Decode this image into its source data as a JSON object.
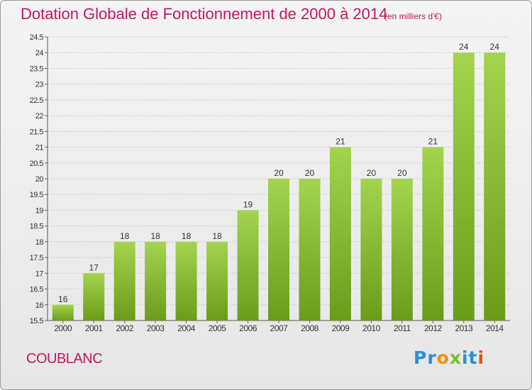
{
  "header": {
    "title": "Dotation Globale de Fonctionnement de 2000 à 2014",
    "subtitle": "(en milliers d'€)"
  },
  "footer": {
    "commune": "COUBLANC",
    "logo_text": "Proxiti"
  },
  "colors": {
    "title": "#c2185b",
    "bar_light": "#a4d44e",
    "bar_dark": "#6a9c1a",
    "logo": [
      "#2d8fd5",
      "#f39200",
      "#7bbf2a",
      "#2d8fd5",
      "#e94e1b"
    ]
  },
  "chart_data": {
    "type": "bar",
    "title": "Dotation Globale de Fonctionnement de 2000 à 2014",
    "subtitle": "(en milliers d'€)",
    "categories": [
      "2000",
      "2001",
      "2002",
      "2003",
      "2004",
      "2005",
      "2006",
      "2007",
      "2008",
      "2009",
      "2010",
      "2011",
      "2012",
      "2013",
      "2014"
    ],
    "values": [
      16,
      17,
      18,
      18,
      18,
      18,
      19,
      20,
      20,
      21,
      20,
      20,
      21,
      24,
      24
    ],
    "data_labels": [
      "16",
      "17",
      "18",
      "18",
      "18",
      "18",
      "19",
      "20",
      "20",
      "21",
      "20",
      "20",
      "21",
      "24",
      "24"
    ],
    "ylim": [
      15.5,
      24.5
    ],
    "yticks": [
      15.5,
      16,
      16.5,
      17,
      17.5,
      18,
      18.5,
      19,
      19.5,
      20,
      20.5,
      21,
      21.5,
      22,
      22.5,
      23,
      23.5,
      24,
      24.5
    ],
    "ytick_labels": [
      "15.5",
      "16",
      "16.5",
      "17",
      "17.5",
      "18",
      "18.5",
      "19",
      "19.5",
      "20",
      "20.5",
      "21",
      "21.5",
      "22",
      "22.5",
      "23",
      "23.5",
      "24",
      "24.5"
    ],
    "grid": "horizontal dashed",
    "xlabel": "",
    "ylabel": ""
  }
}
